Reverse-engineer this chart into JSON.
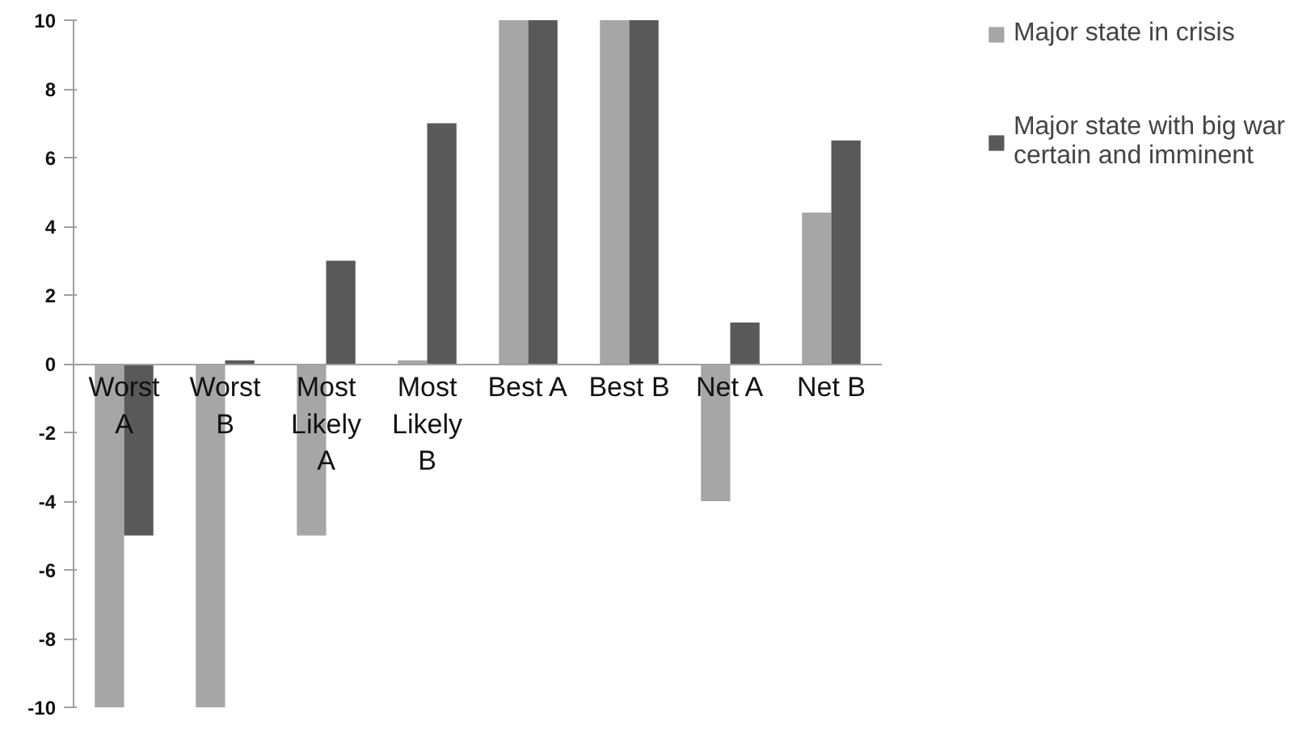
{
  "chart_data": {
    "type": "bar",
    "categories": [
      "Worst A",
      "Worst B",
      "Most Likely A",
      "Most Likely B",
      "Best A",
      "Best B",
      "Net A",
      "Net B"
    ],
    "series": [
      {
        "name": "Major state in crisis",
        "color": "#a6a6a6",
        "values": [
          -10,
          -10,
          -5,
          0.1,
          10,
          10,
          -4,
          4.4
        ]
      },
      {
        "name": "Major state with big war certain and imminent",
        "color": "#595959",
        "values": [
          -5,
          0.1,
          3,
          7,
          10,
          10,
          1.2,
          6.5
        ]
      }
    ],
    "ylim": [
      -10,
      10
    ],
    "yticks": [
      -10,
      -8,
      -6,
      -4,
      -2,
      0,
      2,
      4,
      6,
      8,
      10
    ],
    "grid": false,
    "legend": "right"
  }
}
